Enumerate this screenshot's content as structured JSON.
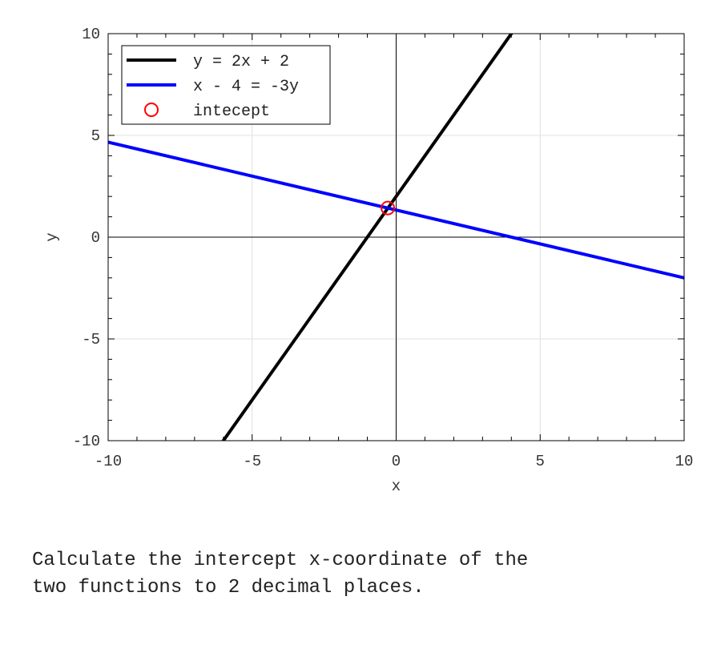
{
  "chart_data": {
    "type": "line",
    "xlabel": "x",
    "ylabel": "y",
    "xlim": [
      -10,
      10
    ],
    "ylim": [
      -10,
      10
    ],
    "xticks": [
      -10,
      -5,
      0,
      5,
      10
    ],
    "yticks": [
      -10,
      -5,
      0,
      5,
      10
    ],
    "grid": true,
    "legend_position": "top-left",
    "series": [
      {
        "name": "y = 2x + 2",
        "color": "#000000",
        "slope": 2,
        "intercept": 2
      },
      {
        "name": "x - 4 = -3y",
        "color": "#0000ff",
        "slope": -0.3333,
        "intercept": 1.3333
      }
    ],
    "points": [
      {
        "name": "intecept",
        "color": "#ff0000",
        "x": -0.29,
        "y": 1.43,
        "marker": "circle"
      }
    ]
  },
  "question": "Calculate the intercept x-coordinate of the\ntwo functions to 2 decimal places."
}
